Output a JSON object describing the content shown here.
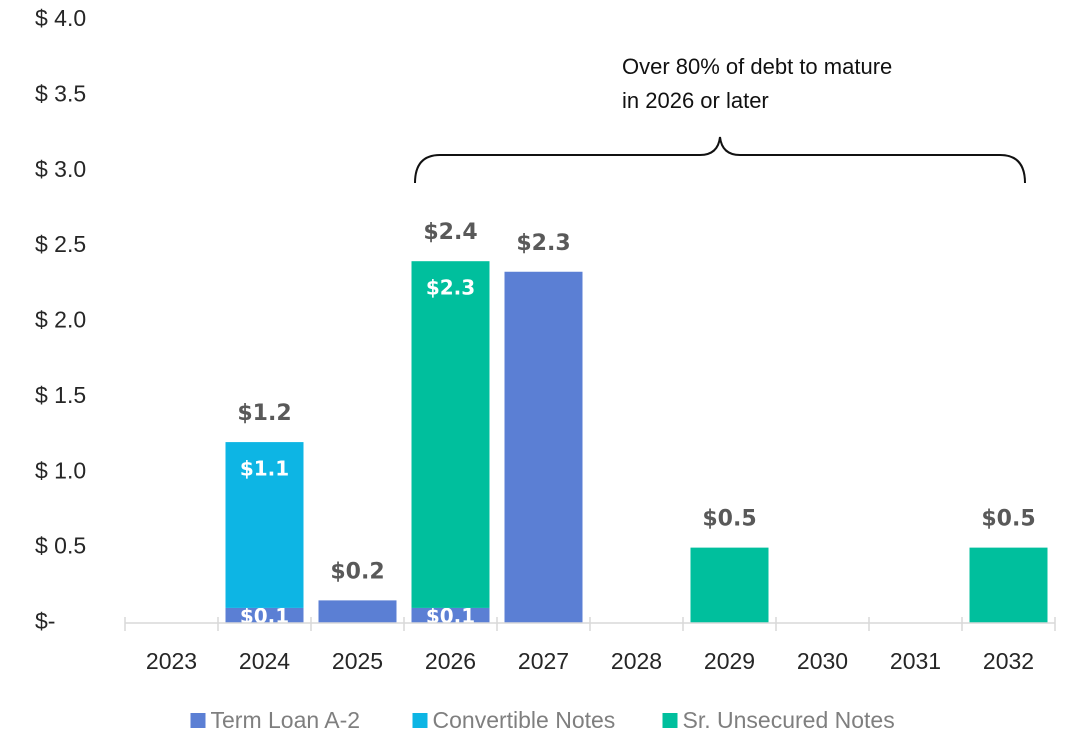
{
  "chart_data": {
    "type": "bar",
    "stacked": true,
    "annotation": [
      "Over 80% of debt to mature",
      "in 2026 or later"
    ],
    "categories": [
      "2023",
      "2024",
      "2025",
      "2026",
      "2027",
      "2028",
      "2029",
      "2030",
      "2031",
      "2032"
    ],
    "series": [
      {
        "name": "Term Loan A-2",
        "color": "#5b7fd4",
        "values": [
          0,
          0.1,
          0.15,
          0.1,
          2.33,
          0,
          0,
          0,
          0,
          0
        ],
        "value_labels": [
          null,
          "$0.1",
          null,
          "$0.1",
          null,
          null,
          null,
          null,
          null,
          null
        ]
      },
      {
        "name": "Convertible Notes",
        "color": "#0db5e4",
        "values": [
          0,
          1.1,
          0,
          0,
          0,
          0,
          0,
          0,
          0,
          0
        ],
        "value_labels": [
          null,
          "$1.1",
          null,
          null,
          null,
          null,
          null,
          null,
          null,
          null
        ]
      },
      {
        "name": "Sr. Unsecured Notes",
        "color": "#00bf9d",
        "values": [
          0,
          0,
          0,
          2.3,
          0,
          0,
          0.5,
          0,
          0,
          0.5
        ],
        "value_labels": [
          null,
          null,
          null,
          "$2.3",
          null,
          null,
          null,
          null,
          null,
          null
        ]
      }
    ],
    "total_labels": [
      null,
      "$1.2",
      "$0.2",
      "$2.4",
      "$2.3",
      null,
      "$0.5",
      null,
      null,
      "$0.5"
    ],
    "ylim": [
      0,
      4.0
    ],
    "yticks": [
      {
        "value": 0,
        "label": "$-"
      },
      {
        "value": 0.5,
        "label": "$ 0.5"
      },
      {
        "value": 1.0,
        "label": "$ 1.0"
      },
      {
        "value": 1.5,
        "label": "$ 1.5"
      },
      {
        "value": 2.0,
        "label": "$ 2.0"
      },
      {
        "value": 2.5,
        "label": "$ 2.5"
      },
      {
        "value": 3.0,
        "label": "$ 3.0"
      },
      {
        "value": 3.5,
        "label": "$ 3.5"
      },
      {
        "value": 4.0,
        "label": "$ 4.0"
      }
    ],
    "grid": false,
    "legend": "bottom"
  }
}
